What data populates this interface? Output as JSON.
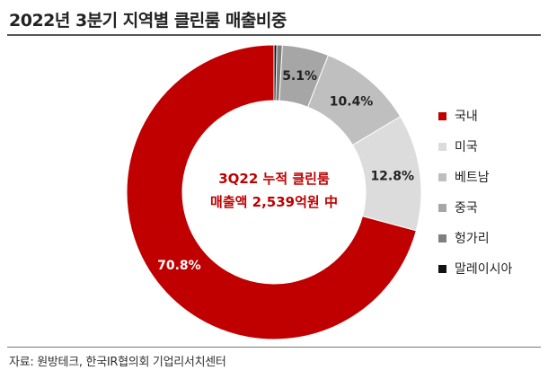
{
  "title": "2022년 3분기 지역별 클린룸 매출비중",
  "source": "자료: 원방테크, 한국IR협의회 기업리서치센터",
  "center_label": [
    "3Q22 누적 클린룸",
    "매출액 2,539억원 中"
  ],
  "colors": {
    "center_text": "#c00000",
    "slice_label_dark": "#222222",
    "slice_label_light": "#ffffff"
  },
  "chart_data": {
    "type": "pie",
    "donut": true,
    "title": "2022년 3분기 지역별 클린룸 매출비중",
    "legend_position": "right",
    "unit": "%",
    "slices": [
      {
        "name": "국내",
        "value": 70.8,
        "label": "70.8%",
        "color": "#c00000"
      },
      {
        "name": "미국",
        "value": 12.8,
        "label": "12.8%",
        "color": "#dcdcdc"
      },
      {
        "name": "베트남",
        "value": 10.4,
        "label": "10.4%",
        "color": "#bfbfbf"
      },
      {
        "name": "중국",
        "value": 5.1,
        "label": "5.1%",
        "color": "#a6a6a6"
      },
      {
        "name": "헝가리",
        "value": 0.6,
        "label": "",
        "color": "#7f7f7f"
      },
      {
        "name": "말레이시아",
        "value": 0.3,
        "label": "",
        "color": "#111111"
      }
    ]
  }
}
